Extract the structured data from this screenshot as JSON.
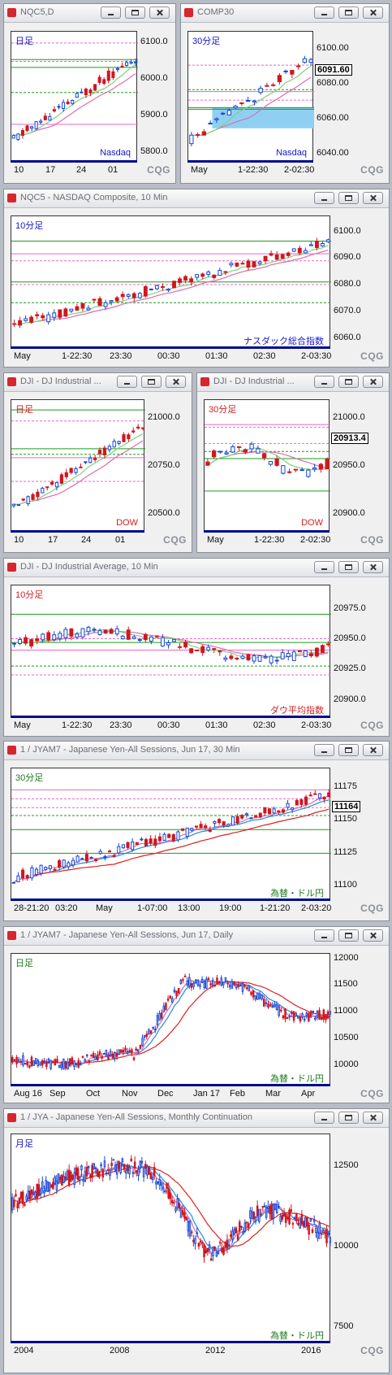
{
  "windows": [
    {
      "title": "NQC5,D",
      "period": "日足",
      "instrument": "Nasdaq",
      "yticks": [
        "6100.0",
        "6000.0",
        "5900.0",
        "5800.0"
      ],
      "xticks": [
        "10",
        "17",
        "24",
        "01"
      ]
    },
    {
      "title": "COMP30",
      "period": "30分足",
      "instrument": "Nasdaq",
      "last_value": "6091.60",
      "yticks": [
        "6100.00",
        "6080.00",
        "6060.00",
        "6040.00"
      ],
      "xticks": [
        "May",
        "1-22:30",
        "2-02:30"
      ]
    },
    {
      "title": "NQC5 - NASDAQ Composite, 10 Min",
      "period": "10分足",
      "instrument": "ナスダック総合指数",
      "yticks": [
        "6100.0",
        "6090.0",
        "6080.0",
        "6070.0",
        "6060.0"
      ],
      "xticks": [
        "May",
        "1-22:30",
        "23:30",
        "00:30",
        "01:30",
        "02:30",
        "2-03:30"
      ]
    },
    {
      "title": "DJI - DJ Industrial ...",
      "period": "日足",
      "instrument": "DOW",
      "yticks": [
        "21000.0",
        "20750.0",
        "20500.0"
      ],
      "xticks": [
        "10",
        "17",
        "24",
        "01"
      ]
    },
    {
      "title": "DJI - DJ Industrial ...",
      "period": "30分足",
      "instrument": "DOW",
      "last_value": "20913.4",
      "yticks": [
        "21000.0",
        "20950.0",
        "20900.0"
      ],
      "xticks": [
        "May",
        "1-22:30",
        "2-02:30"
      ]
    },
    {
      "title": "DJI - DJ Industrial Average, 10 Min",
      "period": "10分足",
      "instrument": "ダウ平均指数",
      "yticks": [
        "20975.0",
        "20950.0",
        "20925.0",
        "20900.0"
      ],
      "xticks": [
        "May",
        "1-22:30",
        "23:30",
        "00:30",
        "01:30",
        "02:30",
        "2-03:30"
      ]
    },
    {
      "title": "1 / JYAM7 - Japanese Yen-All Sessions, Jun 17, 30 Min",
      "period": "30分足",
      "instrument": "為替・ドル円",
      "last_value": "11164",
      "yticks": [
        "11175",
        "11150",
        "11125",
        "11100"
      ],
      "xticks": [
        "28-21:20",
        "03:20",
        "May",
        "1-07:00",
        "13:00",
        "19:00",
        "1-21:20",
        "2-03:20"
      ]
    },
    {
      "title": "1 / JYAM7 - Japanese Yen-All Sessions, Jun 17, Daily",
      "period": "日足",
      "instrument": "為替・ドル円",
      "yticks": [
        "12000",
        "11500",
        "11000",
        "10500",
        "10000"
      ],
      "xticks": [
        "Aug 16",
        "Sep",
        "Oct",
        "Nov",
        "Dec",
        "Jan 17",
        "Feb",
        "Mar",
        "Apr"
      ]
    },
    {
      "title": "1 / JYA - Japanese Yen-All Sessions, Monthly Continuation",
      "period": "月足",
      "instrument": "為替・ドル円",
      "yticks": [
        "12500",
        "10000",
        "7500"
      ],
      "xticks": [
        "2004",
        "2008",
        "2012",
        "2016"
      ]
    }
  ],
  "logo": {
    "text": "CQG",
    "mark": "Q"
  },
  "colors": {
    "up": "#1746d6",
    "down": "#d0171f",
    "ma_pink": "#e06bb1",
    "ma_green": "#7fcf7f",
    "ma_blue": "#1a8fe0",
    "ma_red": "#e02020",
    "level_green": "#1c9a1c",
    "level_pink": "#e868c8",
    "title_blue": "#1515c8",
    "title_red": "#d42020",
    "title_green": "#1a7a1a",
    "highlight": "#8fd0f2"
  },
  "icons": {
    "window": "cqg-app-icon",
    "minimize": "minimize-icon",
    "maximize": "maximize-icon",
    "close": "close-icon"
  }
}
